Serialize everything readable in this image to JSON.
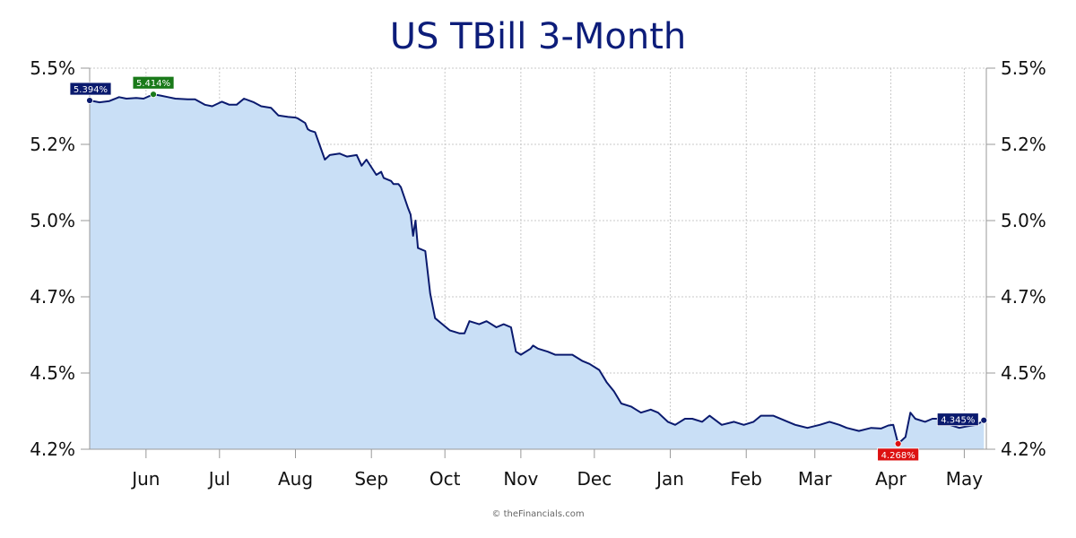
{
  "chart_data": {
    "type": "area",
    "title": "US TBill 3-Month",
    "credit": "© theFinancials.com",
    "y_ticks": [
      "5.5%",
      "5.2%",
      "5.0%",
      "4.7%",
      "4.5%",
      "4.2%"
    ],
    "y_tick_values": [
      5.5,
      5.25,
      5.0,
      4.75,
      4.5,
      4.25
    ],
    "ylim": [
      4.25,
      5.5
    ],
    "x_ticks": [
      "Jun",
      "Jul",
      "Aug",
      "Sep",
      "Oct",
      "Nov",
      "Dec",
      "Jan",
      "Feb",
      "Mar",
      "Apr",
      "May"
    ],
    "x_tick_dates": [
      "2024-06-01",
      "2024-07-01",
      "2024-08-01",
      "2024-09-01",
      "2024-10-01",
      "2024-11-01",
      "2024-12-01",
      "2025-01-01",
      "2025-02-01",
      "2025-03-01",
      "2025-04-01",
      "2025-05-01"
    ],
    "xlim": [
      "2024-05-09",
      "2025-05-10"
    ],
    "grid": true,
    "colors": {
      "line": "#0a1a6e",
      "fill": "#c9dff6",
      "grid": "#c8c8c8",
      "high": "#1a7a1a",
      "low": "#dd1111",
      "marker": "#0a1a6e",
      "title": "#0d1d7a"
    },
    "series": [
      {
        "x": [
          "2024-05-09",
          "2024-05-13",
          "2024-05-17",
          "2024-05-21",
          "2024-05-24",
          "2024-05-28",
          "2024-05-31",
          "2024-06-04",
          "2024-06-07",
          "2024-06-10",
          "2024-06-13",
          "2024-06-18",
          "2024-06-21",
          "2024-06-25",
          "2024-06-28",
          "2024-07-02",
          "2024-07-05",
          "2024-07-08",
          "2024-07-11",
          "2024-07-15",
          "2024-07-18",
          "2024-07-22",
          "2024-07-25",
          "2024-07-29",
          "2024-08-01",
          "2024-08-02",
          "2024-08-05",
          "2024-08-06",
          "2024-08-07",
          "2024-08-09",
          "2024-08-13",
          "2024-08-15",
          "2024-08-19",
          "2024-08-22",
          "2024-08-26",
          "2024-08-28",
          "2024-08-30",
          "2024-09-03",
          "2024-09-05",
          "2024-09-06",
          "2024-09-09",
          "2024-09-10",
          "2024-09-12",
          "2024-09-13",
          "2024-09-16",
          "2024-09-17",
          "2024-09-18",
          "2024-09-19",
          "2024-09-20",
          "2024-09-23",
          "2024-09-25",
          "2024-09-27",
          "2024-09-30",
          "2024-10-03",
          "2024-10-07",
          "2024-10-09",
          "2024-10-11",
          "2024-10-15",
          "2024-10-18",
          "2024-10-22",
          "2024-10-25",
          "2024-10-28",
          "2024-10-30",
          "2024-11-01",
          "2024-11-05",
          "2024-11-06",
          "2024-11-08",
          "2024-11-12",
          "2024-11-15",
          "2024-11-19",
          "2024-11-22",
          "2024-11-26",
          "2024-11-29",
          "2024-12-03",
          "2024-12-06",
          "2024-12-09",
          "2024-12-12",
          "2024-12-16",
          "2024-12-18",
          "2024-12-20",
          "2024-12-24",
          "2024-12-27",
          "2024-12-31",
          "2025-01-03",
          "2025-01-07",
          "2025-01-10",
          "2025-01-14",
          "2025-01-17",
          "2025-01-22",
          "2025-01-27",
          "2025-01-31",
          "2025-02-04",
          "2025-02-07",
          "2025-02-12",
          "2025-02-18",
          "2025-02-21",
          "2025-02-26",
          "2025-03-03",
          "2025-03-07",
          "2025-03-11",
          "2025-03-14",
          "2025-03-19",
          "2025-03-24",
          "2025-03-28",
          "2025-03-31",
          "2025-04-02",
          "2025-04-04",
          "2025-04-07",
          "2025-04-09",
          "2025-04-11",
          "2025-04-15",
          "2025-04-18",
          "2025-04-22",
          "2025-04-25",
          "2025-04-29",
          "2025-05-02",
          "2025-05-06",
          "2025-05-09"
        ],
        "y": [
          5.394,
          5.388,
          5.392,
          5.405,
          5.4,
          5.402,
          5.4,
          5.414,
          5.41,
          5.405,
          5.4,
          5.398,
          5.398,
          5.38,
          5.375,
          5.39,
          5.38,
          5.38,
          5.4,
          5.388,
          5.375,
          5.37,
          5.345,
          5.34,
          5.338,
          5.335,
          5.32,
          5.3,
          5.295,
          5.29,
          5.2,
          5.215,
          5.22,
          5.21,
          5.215,
          5.18,
          5.2,
          5.15,
          5.16,
          5.14,
          5.13,
          5.12,
          5.12,
          5.11,
          5.04,
          5.02,
          4.95,
          5.0,
          4.91,
          4.9,
          4.76,
          4.68,
          4.66,
          4.64,
          4.63,
          4.63,
          4.67,
          4.66,
          4.67,
          4.65,
          4.66,
          4.65,
          4.57,
          4.56,
          4.58,
          4.59,
          4.58,
          4.57,
          4.56,
          4.56,
          4.56,
          4.54,
          4.53,
          4.51,
          4.47,
          4.44,
          4.4,
          4.39,
          4.38,
          4.37,
          4.38,
          4.37,
          4.34,
          4.33,
          4.35,
          4.35,
          4.34,
          4.36,
          4.33,
          4.34,
          4.33,
          4.34,
          4.36,
          4.36,
          4.34,
          4.33,
          4.32,
          4.33,
          4.34,
          4.33,
          4.32,
          4.31,
          4.32,
          4.318,
          4.328,
          4.33,
          4.268,
          4.29,
          4.37,
          4.35,
          4.34,
          4.35,
          4.35,
          4.33,
          4.32,
          4.325,
          4.33,
          4.345
        ]
      }
    ],
    "annotations": [
      {
        "label": "5.394%",
        "date": "2024-05-09",
        "value": 5.394,
        "kind": "start"
      },
      {
        "label": "5.414%",
        "date": "2024-06-04",
        "value": 5.414,
        "kind": "high"
      },
      {
        "label": "4.268%",
        "date": "2025-04-04",
        "value": 4.268,
        "kind": "low"
      },
      {
        "label": "4.345%",
        "date": "2025-05-09",
        "value": 4.345,
        "kind": "end"
      }
    ]
  }
}
